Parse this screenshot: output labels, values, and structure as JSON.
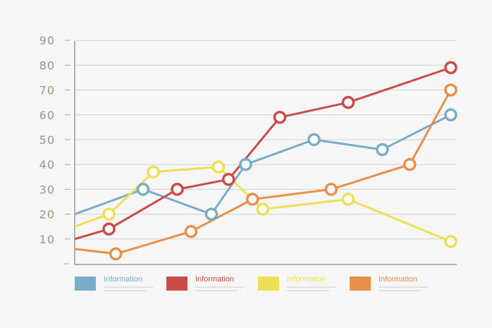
{
  "chart_data": {
    "type": "line",
    "x": [
      0,
      1,
      2,
      3,
      4,
      5,
      6,
      7,
      8,
      9,
      10,
      11,
      12,
      13,
      14
    ],
    "ylim": [
      0,
      90
    ],
    "yticks": [
      10,
      20,
      30,
      40,
      50,
      60,
      70,
      80,
      90
    ],
    "grid": true,
    "legend_position": "bottom",
    "series": [
      {
        "name": "Information",
        "color": "#7aabc9",
        "points": [
          [
            0,
            20
          ],
          [
            2,
            30
          ],
          [
            4,
            20
          ],
          [
            5,
            40
          ],
          [
            7,
            50
          ],
          [
            9,
            46
          ],
          [
            11,
            60
          ]
        ],
        "markers": [
          2,
          4,
          5,
          7,
          9,
          11
        ]
      },
      {
        "name": "Information",
        "color": "#cc4a4a",
        "points": [
          [
            0,
            10
          ],
          [
            1,
            14
          ],
          [
            3,
            30
          ],
          [
            4.5,
            34
          ],
          [
            6,
            59
          ],
          [
            8,
            65
          ],
          [
            11,
            79
          ]
        ],
        "markers": [
          1,
          3,
          4.5,
          6,
          8,
          11
        ]
      },
      {
        "name": "Information",
        "color": "#ede058",
        "points": [
          [
            0,
            15
          ],
          [
            1,
            20
          ],
          [
            2.3,
            37
          ],
          [
            4.2,
            39
          ],
          [
            5.5,
            22
          ],
          [
            8,
            26
          ],
          [
            11,
            9
          ]
        ],
        "markers": [
          1,
          2.3,
          4.2,
          5.5,
          8,
          11
        ]
      },
      {
        "name": "Information",
        "color": "#e8904a",
        "points": [
          [
            0,
            6
          ],
          [
            1.2,
            4
          ],
          [
            3.4,
            13
          ],
          [
            5.2,
            26
          ],
          [
            7.5,
            30
          ],
          [
            9.8,
            40
          ],
          [
            11,
            70
          ]
        ],
        "markers": [
          1.2,
          3.4,
          5.2,
          7.5,
          9.8,
          11
        ]
      }
    ]
  }
}
